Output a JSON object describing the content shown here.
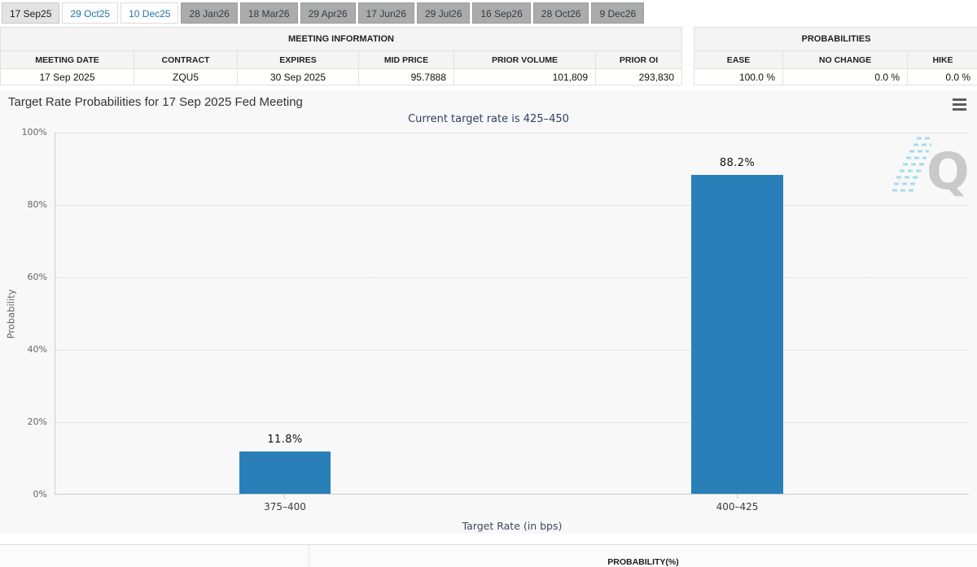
{
  "tabs": {
    "items": [
      {
        "label": "17 Sep25",
        "state": "active"
      },
      {
        "label": "29 Oct25",
        "state": "link"
      },
      {
        "label": "10 Dec25",
        "state": "link"
      },
      {
        "label": "28 Jan26",
        "state": "disabled"
      },
      {
        "label": "18 Mar26",
        "state": "disabled"
      },
      {
        "label": "29 Apr26",
        "state": "disabled"
      },
      {
        "label": "17 Jun26",
        "state": "disabled"
      },
      {
        "label": "29 Jul26",
        "state": "disabled"
      },
      {
        "label": "16 Sep26",
        "state": "disabled"
      },
      {
        "label": "28 Oct26",
        "state": "disabled"
      },
      {
        "label": "9 Dec26",
        "state": "disabled"
      }
    ]
  },
  "meeting_information": {
    "title": "MEETING INFORMATION",
    "columns": {
      "meeting_date": "MEETING DATE",
      "contract": "CONTRACT",
      "expires": "EXPIRES",
      "mid_price": "MID PRICE",
      "prior_volume": "PRIOR VOLUME",
      "prior_oi": "PRIOR OI"
    },
    "row": {
      "meeting_date": "17 Sep 2025",
      "contract": "ZQU5",
      "expires": "30 Sep 2025",
      "mid_price": "95.7888",
      "prior_volume": "101,809",
      "prior_oi": "293,830"
    }
  },
  "probabilities": {
    "title": "PROBABILITIES",
    "columns": {
      "ease": "EASE",
      "no_change": "NO CHANGE",
      "hike": "HIKE"
    },
    "row": {
      "ease": "100.0 %",
      "no_change": "0.0 %",
      "hike": "0.0 %"
    }
  },
  "chart_data": {
    "type": "bar",
    "title": "Target Rate Probabilities for 17 Sep 2025 Fed Meeting",
    "subtitle": "Current target rate is 425–450",
    "categories": [
      "375–400",
      "400–425"
    ],
    "values": [
      11.8,
      88.2
    ],
    "data_labels": [
      "11.8%",
      "88.2%"
    ],
    "xlabel": "Target Rate (in bps)",
    "ylabel": "Probability",
    "yticks": [
      "100%",
      "80%",
      "60%",
      "40%",
      "20%",
      "0%"
    ],
    "ylim": [
      0,
      100
    ],
    "grid": "horizontal-dotted",
    "legend": "none",
    "bar_color": "#2980b9",
    "watermark_letter": "Q"
  },
  "bottom_table": {
    "probability_header": "PROBABILITY(%)"
  }
}
